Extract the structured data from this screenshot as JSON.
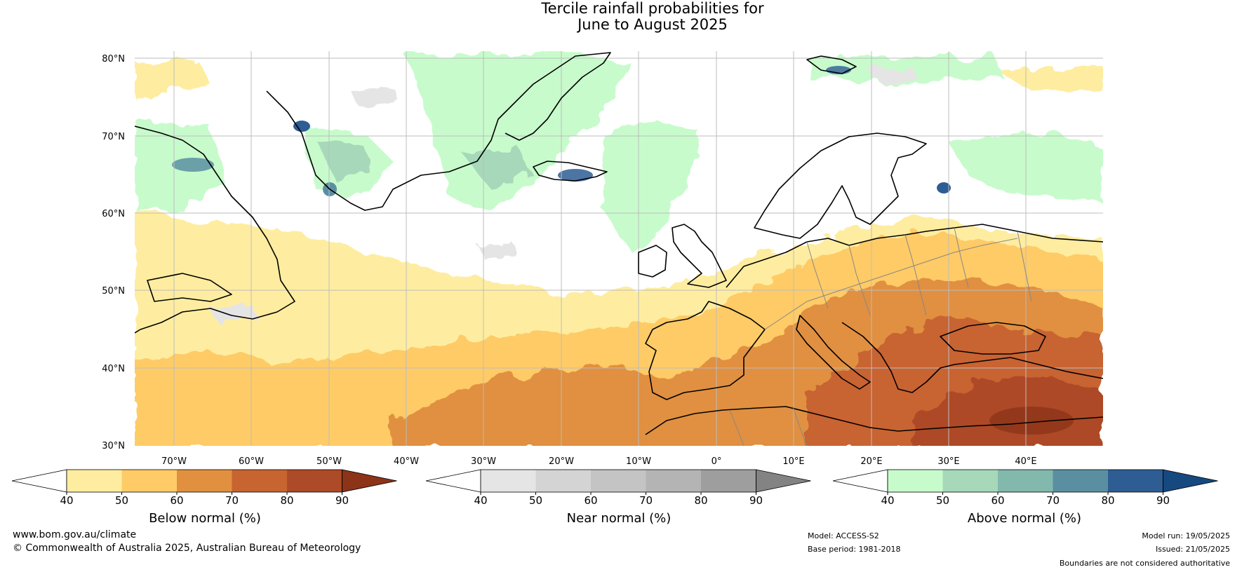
{
  "title_line1": "Tercile rainfall probabilities for",
  "title_line2": "June to August 2025",
  "map": {
    "lat_labels": [
      "80°N",
      "70°N",
      "60°N",
      "50°N",
      "40°N",
      "30°N"
    ],
    "lon_labels": [
      "70°W",
      "60°W",
      "50°W",
      "40°W",
      "30°W",
      "20°W",
      "10°W",
      "0°",
      "10°E",
      "20°E",
      "30°E",
      "40°E"
    ]
  },
  "colorbars": [
    {
      "title": "Below normal (%)",
      "ticks": [
        "40",
        "50",
        "60",
        "70",
        "80",
        "90"
      ],
      "colors": [
        "#ffffff",
        "#feeda0",
        "#fecb66",
        "#e0903f",
        "#c86430",
        "#ad4a28",
        "#8c3318"
      ]
    },
    {
      "title": "Near normal (%)",
      "ticks": [
        "40",
        "50",
        "60",
        "70",
        "80",
        "90"
      ],
      "colors": [
        "#ffffff",
        "#e5e5e5",
        "#d4d4d4",
        "#c4c4c4",
        "#b4b4b4",
        "#9e9e9e",
        "#838383"
      ]
    },
    {
      "title": "Above normal (%)",
      "ticks": [
        "40",
        "50",
        "60",
        "70",
        "80",
        "90"
      ],
      "colors": [
        "#ffffff",
        "#c8fbcc",
        "#a6d8b9",
        "#83b8ad",
        "#5a8fa2",
        "#2e5d93",
        "#15497f"
      ]
    }
  ],
  "footer": {
    "website": "www.bom.gov.au/climate",
    "copyright": "© Commonwealth of Australia 2025, Australian Bureau of Meteorology",
    "model": "Model: ACCESS-S2",
    "base_period": "Base period: 1981-2018",
    "model_run": "Model run: 19/05/2025",
    "issued": "Issued: 21/05/2025",
    "disclaimer": "Boundaries are not considered authoritative"
  }
}
